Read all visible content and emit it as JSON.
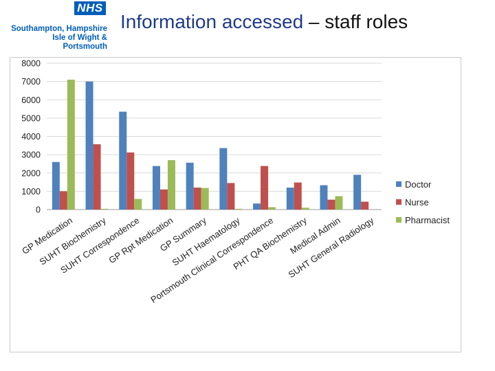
{
  "header": {
    "nhs_badge": "NHS",
    "org_line1": "Southampton, Hampshire",
    "org_line2": "Isle of Wight & Portsmouth",
    "title_main": "Information accessed",
    "title_rest": " – staff roles"
  },
  "colors": {
    "Doctor": "#4F81BD",
    "Nurse": "#C0504D",
    "Pharmacist": "#9BBB59",
    "grid": "#d9d9d9"
  },
  "chart_data": {
    "type": "bar",
    "title": "",
    "xlabel": "",
    "ylabel": "",
    "ylim": [
      0,
      8000
    ],
    "yticks": [
      0,
      1000,
      2000,
      3000,
      4000,
      5000,
      6000,
      7000,
      8000
    ],
    "grid": true,
    "legend_position": "right",
    "categories": [
      "GP Medication",
      "SUHT Biochemistry",
      "SUHT Correspondence",
      "GP Rpt Medication",
      "GP Summary",
      "SUHT Haematology",
      "Portsmouth Clinical Correspondence",
      "PHT QA Biochemistry",
      "Medical Admin",
      "SUHT General Radiology"
    ],
    "series": [
      {
        "name": "Doctor",
        "values": [
          2600,
          7000,
          5350,
          2380,
          2560,
          3360,
          330,
          1200,
          1330,
          1900
        ]
      },
      {
        "name": "Nurse",
        "values": [
          1000,
          3570,
          3120,
          1100,
          1200,
          1450,
          2380,
          1480,
          540,
          430
        ]
      },
      {
        "name": "Pharmacist",
        "values": [
          7100,
          40,
          580,
          2700,
          1180,
          40,
          130,
          100,
          730,
          0
        ]
      }
    ]
  }
}
